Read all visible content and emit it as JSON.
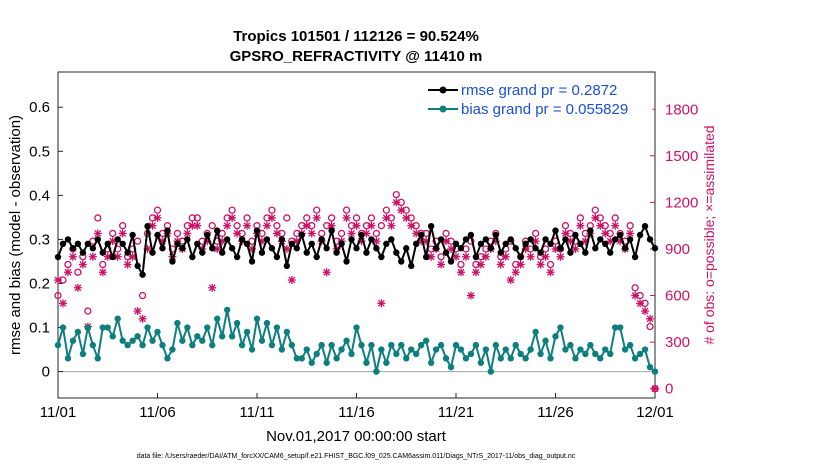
{
  "chart_data": {
    "type": "line",
    "title": "Tropics 101501 / 112126 = 90.524%",
    "subtitle": "GPSRO_REFRACTIVITY @ 11410 m",
    "xlabel": "Nov.01,2017 00:00:00 start",
    "ylabel": "rmse and bias (model - observation)",
    "y2label": "# of obs: o=possible; ×=assimilated",
    "footer": "data file: /Users/raeder/DAI/ATM_forcXX/CAM6_setup/f.e21.FHIST_BGC.f09_025.CAM6assim.011/Diags_NTrS_2017-11/obs_diag_output.nc",
    "xlim": [
      0,
      30
    ],
    "ylim": [
      -0.06,
      0.68
    ],
    "y2lim": [
      -60,
      2040
    ],
    "x_ticks": [
      0,
      5,
      10,
      15,
      20,
      25,
      30
    ],
    "x_tick_labels": [
      "11/01",
      "11/06",
      "11/11",
      "11/16",
      "11/21",
      "11/26",
      "12/01"
    ],
    "y_ticks": [
      0,
      0.1,
      0.2,
      0.3,
      0.4,
      0.5,
      0.6
    ],
    "y_tick_labels": [
      "0",
      "0.1",
      "0.2",
      "0.3",
      "0.4",
      "0.5",
      "0.6"
    ],
    "y2_ticks": [
      0,
      300,
      600,
      900,
      1200,
      1500,
      1800
    ],
    "y2_tick_labels": [
      "0",
      "300",
      "600",
      "900",
      "1200",
      "1500",
      "1800"
    ],
    "legend": {
      "position": "top-right",
      "entries": [
        "rmse grand pr = 0.2872",
        "bias grand pr = 0.055829"
      ]
    },
    "colors": {
      "rmse": "#000000",
      "bias": "#0e7f7f",
      "obs": "#cc1166",
      "zero_line": "#aaaaaa",
      "legend_text": "#1a4fd6"
    },
    "x": [
      0,
      0.25,
      0.5,
      0.75,
      1,
      1.25,
      1.5,
      1.75,
      2,
      2.25,
      2.5,
      2.75,
      3,
      3.25,
      3.5,
      3.75,
      4,
      4.25,
      4.5,
      4.75,
      5,
      5.25,
      5.5,
      5.75,
      6,
      6.25,
      6.5,
      6.75,
      7,
      7.25,
      7.5,
      7.75,
      8,
      8.25,
      8.5,
      8.75,
      9,
      9.25,
      9.5,
      9.75,
      10,
      10.25,
      10.5,
      10.75,
      11,
      11.25,
      11.5,
      11.75,
      12,
      12.25,
      12.5,
      12.75,
      13,
      13.25,
      13.5,
      13.75,
      14,
      14.25,
      14.5,
      14.75,
      15,
      15.25,
      15.5,
      15.75,
      16,
      16.25,
      16.5,
      16.75,
      17,
      17.25,
      17.5,
      17.75,
      18,
      18.25,
      18.5,
      18.75,
      19,
      19.25,
      19.5,
      19.75,
      20,
      20.25,
      20.5,
      20.75,
      21,
      21.25,
      21.5,
      21.75,
      22,
      22.25,
      22.5,
      22.75,
      23,
      23.25,
      23.5,
      23.75,
      24,
      24.25,
      24.5,
      24.75,
      25,
      25.25,
      25.5,
      25.75,
      26,
      26.25,
      26.5,
      26.75,
      27,
      27.25,
      27.5,
      27.75,
      28,
      28.25,
      28.5,
      28.75,
      29,
      29.25,
      29.5,
      29.75,
      30
    ],
    "series": [
      {
        "name": "rmse",
        "values": [
          0.26,
          0.29,
          0.3,
          0.28,
          0.29,
          0.27,
          0.29,
          0.28,
          0.3,
          0.27,
          0.29,
          0.26,
          0.3,
          0.29,
          0.27,
          0.31,
          0.24,
          0.22,
          0.33,
          0.27,
          0.31,
          0.28,
          0.32,
          0.25,
          0.29,
          0.28,
          0.3,
          0.26,
          0.29,
          0.27,
          0.31,
          0.28,
          0.32,
          0.27,
          0.3,
          0.28,
          0.26,
          0.3,
          0.29,
          0.25,
          0.32,
          0.27,
          0.3,
          0.28,
          0.26,
          0.3,
          0.24,
          0.29,
          0.28,
          0.31,
          0.27,
          0.29,
          0.26,
          0.3,
          0.28,
          0.32,
          0.27,
          0.29,
          0.25,
          0.3,
          0.28,
          0.31,
          0.27,
          0.3,
          0.28,
          0.26,
          0.29,
          0.3,
          0.27,
          0.25,
          0.28,
          0.24,
          0.29,
          0.31,
          0.26,
          0.33,
          0.28,
          0.3,
          0.27,
          0.25,
          0.29,
          0.28,
          0.3,
          0.31,
          0.26,
          0.29,
          0.3,
          0.28,
          0.31,
          0.27,
          0.29,
          0.3,
          0.28,
          0.26,
          0.29,
          0.3,
          0.28,
          0.27,
          0.3,
          0.29,
          0.32,
          0.28,
          0.3,
          0.27,
          0.31,
          0.29,
          0.27,
          0.32,
          0.28,
          0.3,
          0.29,
          0.27,
          0.3,
          0.31,
          0.28,
          0.3,
          0.26,
          0.31,
          0.33,
          0.3,
          0.28
        ],
        "color": "#000000"
      },
      {
        "name": "bias",
        "values": [
          0.06,
          0.1,
          0.03,
          0.07,
          0.09,
          0.04,
          0.1,
          0.06,
          0.03,
          0.1,
          0.1,
          0.08,
          0.12,
          0.07,
          0.06,
          0.07,
          0.08,
          0.06,
          0.1,
          0.07,
          0.09,
          0.06,
          0.03,
          0.05,
          0.11,
          0.07,
          0.1,
          0.06,
          0.08,
          0.07,
          0.1,
          0.06,
          0.12,
          0.08,
          0.14,
          0.08,
          0.11,
          0.06,
          0.09,
          0.05,
          0.12,
          0.07,
          0.11,
          0.06,
          0.1,
          0.05,
          0.09,
          0.06,
          0.03,
          0.03,
          0.05,
          0.02,
          0.04,
          0.06,
          0.02,
          0.06,
          0.03,
          0.05,
          0.07,
          0.04,
          0.1,
          0.06,
          0.02,
          0.06,
          0.0,
          0.05,
          0.02,
          0.06,
          0.04,
          0.06,
          0.03,
          0.05,
          0.04,
          0.06,
          0.07,
          0.02,
          0.05,
          0.06,
          0.03,
          0.01,
          0.06,
          0.05,
          0.03,
          0.04,
          0.06,
          0.02,
          0.05,
          0.0,
          0.06,
          0.03,
          0.05,
          0.03,
          0.06,
          0.04,
          0.03,
          0.05,
          0.09,
          0.04,
          0.07,
          0.03,
          0.08,
          0.1,
          0.05,
          0.06,
          0.03,
          0.05,
          0.04,
          0.06,
          0.04,
          0.03,
          0.05,
          0.04,
          0.1,
          0.1,
          0.05,
          0.06,
          0.03,
          0.04,
          0.05,
          0.01,
          0.0
        ],
        "color": "#0e7f7f"
      },
      {
        "name": "obs possible",
        "values": [
          600,
          700,
          800,
          900,
          750,
          850,
          500,
          950,
          1100,
          800,
          900,
          1000,
          900,
          1050,
          850,
          900,
          950,
          600,
          1000,
          1100,
          1150,
          1000,
          1050,
          900,
          1000,
          950,
          1050,
          1100,
          1100,
          950,
          1000,
          1050,
          950,
          1000,
          1100,
          1150,
          1050,
          1000,
          1100,
          950,
          1050,
          1000,
          1100,
          1150,
          1050,
          1000,
          1100,
          950,
          1000,
          1050,
          1100,
          1050,
          1150,
          1000,
          1050,
          1100,
          950,
          1000,
          1150,
          1050,
          1100,
          1000,
          1050,
          1100,
          1000,
          1050,
          1150,
          1100,
          1250,
          1200,
          1150,
          1100,
          1050,
          1000,
          1000,
          900,
          950,
          850,
          1000,
          950,
          900,
          800,
          900,
          950,
          800,
          850,
          900,
          950,
          1000,
          850,
          900,
          950,
          800,
          850,
          950,
          900,
          1000,
          850,
          900,
          800,
          950,
          900,
          1050,
          1000,
          950,
          1100,
          1000,
          1050,
          1150,
          1100,
          1050,
          1000,
          1100,
          1000,
          950,
          1050,
          650,
          600,
          550,
          400,
          0
        ],
        "color": "#cc1166"
      },
      {
        "name": "obs assimilated",
        "values": [
          700,
          550,
          750,
          850,
          650,
          800,
          400,
          850,
          1000,
          750,
          850,
          950,
          850,
          1000,
          800,
          850,
          500,
          450,
          900,
          1050,
          1100,
          950,
          1000,
          850,
          950,
          900,
          1000,
          1050,
          1050,
          900,
          950,
          650,
          900,
          950,
          1050,
          1100,
          1000,
          950,
          1050,
          900,
          1000,
          950,
          1050,
          1100,
          1000,
          950,
          900,
          700,
          950,
          1000,
          1050,
          1000,
          1100,
          950,
          750,
          1050,
          900,
          950,
          1100,
          1000,
          1050,
          950,
          1000,
          1050,
          950,
          550,
          1100,
          1050,
          1200,
          1150,
          1100,
          1050,
          1000,
          950,
          950,
          850,
          900,
          800,
          950,
          900,
          850,
          750,
          850,
          600,
          750,
          800,
          850,
          900,
          950,
          800,
          850,
          700,
          750,
          800,
          900,
          850,
          950,
          800,
          850,
          750,
          900,
          850,
          1000,
          950,
          900,
          1050,
          950,
          1000,
          1100,
          1050,
          1000,
          950,
          1050,
          950,
          900,
          1000,
          600,
          550,
          500,
          450,
          0
        ],
        "color": "#cc1166"
      }
    ]
  }
}
